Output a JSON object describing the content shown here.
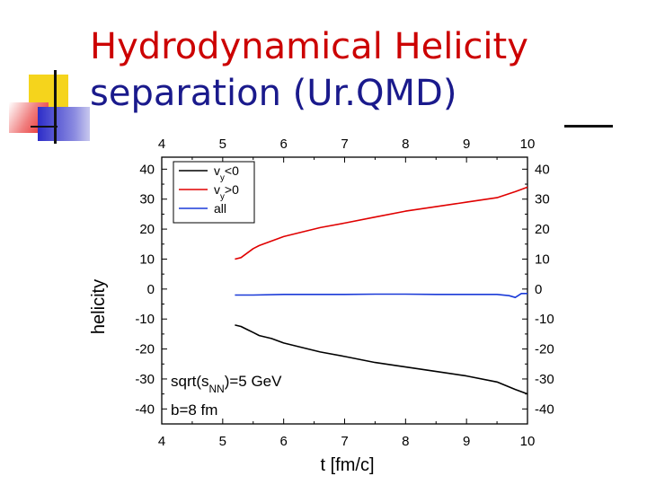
{
  "slide": {
    "title_line1": "Hydrodynamical Helicity",
    "title_line2": "separation (Ur.QMD)",
    "colors": {
      "title_primary": "#cc0000",
      "title_secondary": "#1a1a8c"
    }
  },
  "chart_data": {
    "type": "line",
    "title": "",
    "xlabel": "t [fm/c]",
    "ylabel": "helicity",
    "xlim": [
      4,
      10
    ],
    "ylim": [
      -45,
      44
    ],
    "xticks": [
      4,
      5,
      6,
      7,
      8,
      9,
      10
    ],
    "yticks": [
      -40,
      -30,
      -20,
      -10,
      0,
      10,
      20,
      30,
      40
    ],
    "grid": false,
    "legend_position": "top-left",
    "annotations": [
      {
        "label": "sqrt(s_NN)=5 GeV",
        "text_main": "sqrt(s",
        "text_sub": "NN",
        "text_tail": ")=5 GeV"
      },
      {
        "label": "b=8 fm",
        "text_main": "b=8 fm"
      }
    ],
    "series": [
      {
        "name": "v_y<0",
        "legend_main": "v",
        "legend_sub": "y",
        "legend_tail": "<0",
        "color": "#000000",
        "x": [
          5.2,
          5.3,
          5.4,
          5.5,
          5.6,
          5.8,
          6.0,
          6.3,
          6.6,
          7.0,
          7.5,
          8.0,
          8.5,
          9.0,
          9.5,
          9.8,
          10.0
        ],
        "y": [
          -12,
          -12.5,
          -13.5,
          -14.5,
          -15.5,
          -16.5,
          -18,
          -19.5,
          -21,
          -22.5,
          -24.5,
          -26,
          -27.5,
          -29,
          -31,
          -33.5,
          -35
        ]
      },
      {
        "name": "v_y>0",
        "legend_main": "v",
        "legend_sub": "y",
        "legend_tail": ">0",
        "color": "#e00000",
        "x": [
          5.2,
          5.3,
          5.4,
          5.5,
          5.6,
          5.8,
          6.0,
          6.3,
          6.6,
          7.0,
          7.5,
          8.0,
          8.5,
          9.0,
          9.5,
          9.8,
          10.0
        ],
        "y": [
          10,
          10.5,
          12,
          13.5,
          14.5,
          16,
          17.5,
          19,
          20.5,
          22,
          24,
          26,
          27.5,
          29,
          30.5,
          32.5,
          34
        ]
      },
      {
        "name": "all",
        "legend_main": "all",
        "legend_sub": "",
        "legend_tail": "",
        "color": "#1a3ad8",
        "x": [
          5.2,
          5.5,
          6.0,
          6.5,
          7.0,
          7.5,
          8.0,
          8.5,
          9.0,
          9.5,
          9.7,
          9.8,
          9.9,
          10.0
        ],
        "y": [
          -2,
          -2,
          -1.8,
          -1.8,
          -1.8,
          -1.7,
          -1.7,
          -1.8,
          -1.8,
          -1.8,
          -2.2,
          -2.8,
          -1.5,
          -1.5
        ]
      }
    ]
  }
}
